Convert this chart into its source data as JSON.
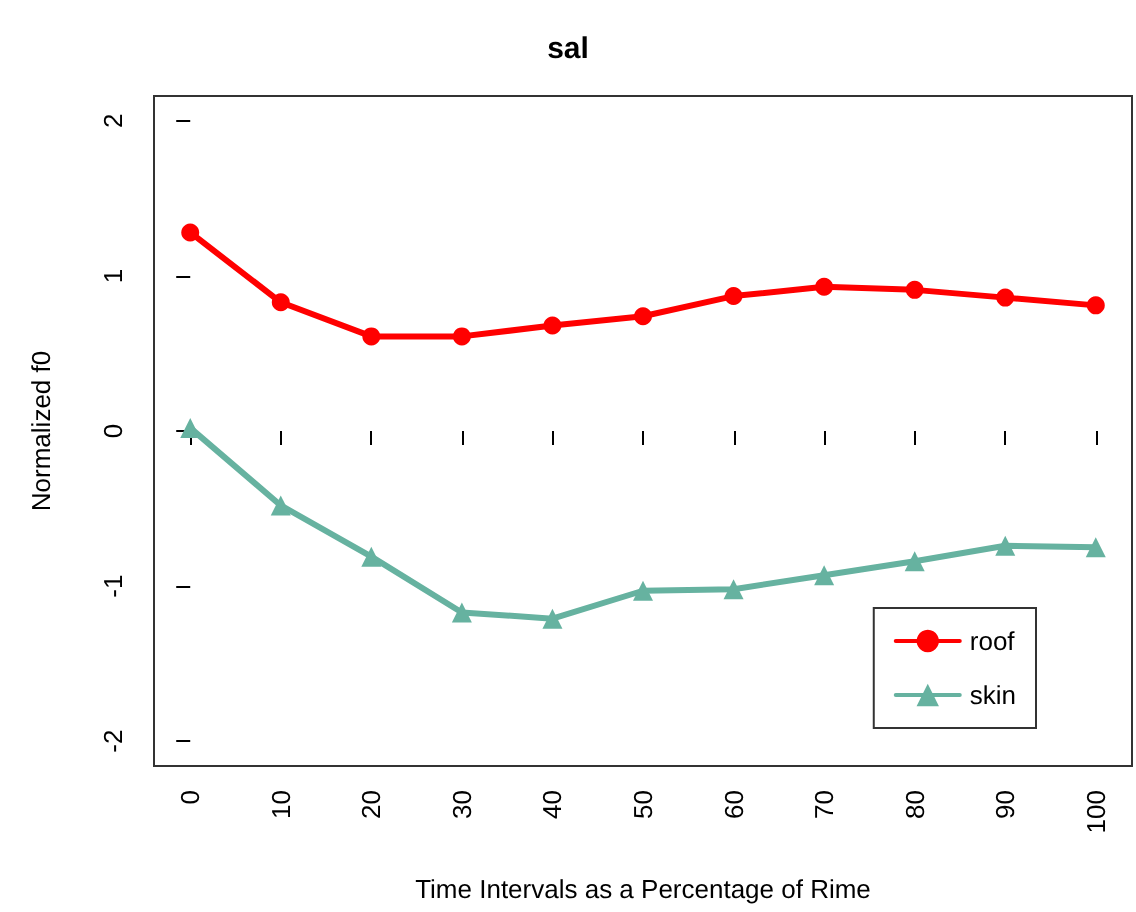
{
  "chart_data": {
    "type": "line",
    "title": "sal",
    "xlabel": "Time Intervals as a Percentage of Rime",
    "ylabel": "Normalized f0",
    "x": [
      0,
      10,
      20,
      30,
      40,
      50,
      60,
      70,
      80,
      90,
      100
    ],
    "xlim": [
      -4,
      104
    ],
    "xticks": [
      0,
      10,
      20,
      30,
      40,
      50,
      60,
      70,
      80,
      90,
      100
    ],
    "ylim": [
      -2.16,
      2.16
    ],
    "yticks": [
      -2,
      -1,
      0,
      1,
      2
    ],
    "grid": false,
    "legend": "bottom right",
    "line_style": "solid",
    "series": [
      {
        "name": "roof",
        "color": "#ff0000",
        "marker": "circle",
        "values": [
          1.28,
          0.83,
          0.61,
          0.61,
          0.68,
          0.74,
          0.87,
          0.93,
          0.91,
          0.86,
          0.81
        ]
      },
      {
        "name": "skin",
        "color": "#66b2a0",
        "marker": "triangle",
        "values": [
          0.02,
          -0.48,
          -0.81,
          -1.17,
          -1.21,
          -1.03,
          -1.02,
          -0.93,
          -0.84,
          -0.74,
          -0.75
        ]
      }
    ]
  }
}
